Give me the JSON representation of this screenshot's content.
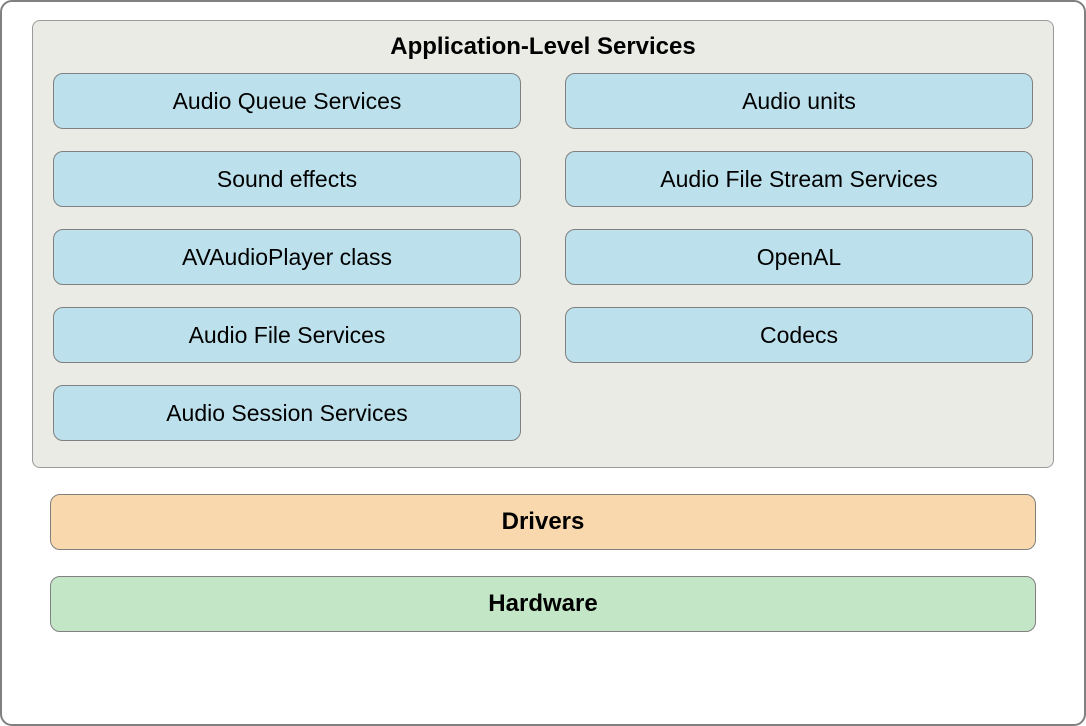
{
  "diagram": {
    "type": "layered-architecture",
    "outer": {
      "border_color": "#808080",
      "border_radius": 12,
      "background": "#ffffff"
    },
    "app_level": {
      "title": "Application-Level Services",
      "title_fontsize": 24,
      "title_fontweight": "bold",
      "background": "#ebebe6",
      "border_color": "#9a9a9a",
      "border_radius": 8,
      "item_background": "#bce1ec",
      "item_border_color": "#808080",
      "item_border_radius": 10,
      "item_fontsize": 23,
      "grid_columns": 2,
      "column_gap": 44,
      "row_gap": 22,
      "items": [
        "Audio Queue Services",
        "Audio units",
        "Sound effects",
        "Audio File Stream Services",
        "AVAudioPlayer class",
        "OpenAL",
        "Audio File Services",
        "Codecs",
        "Audio Session Services"
      ]
    },
    "drivers": {
      "label": "Drivers",
      "background": "#fad8ae",
      "border_color": "#808080",
      "border_radius": 10,
      "fontsize": 24,
      "fontweight": "bold"
    },
    "hardware": {
      "label": "Hardware",
      "background": "#c3e6c7",
      "border_color": "#808080",
      "border_radius": 10,
      "fontsize": 24,
      "fontweight": "bold"
    }
  }
}
